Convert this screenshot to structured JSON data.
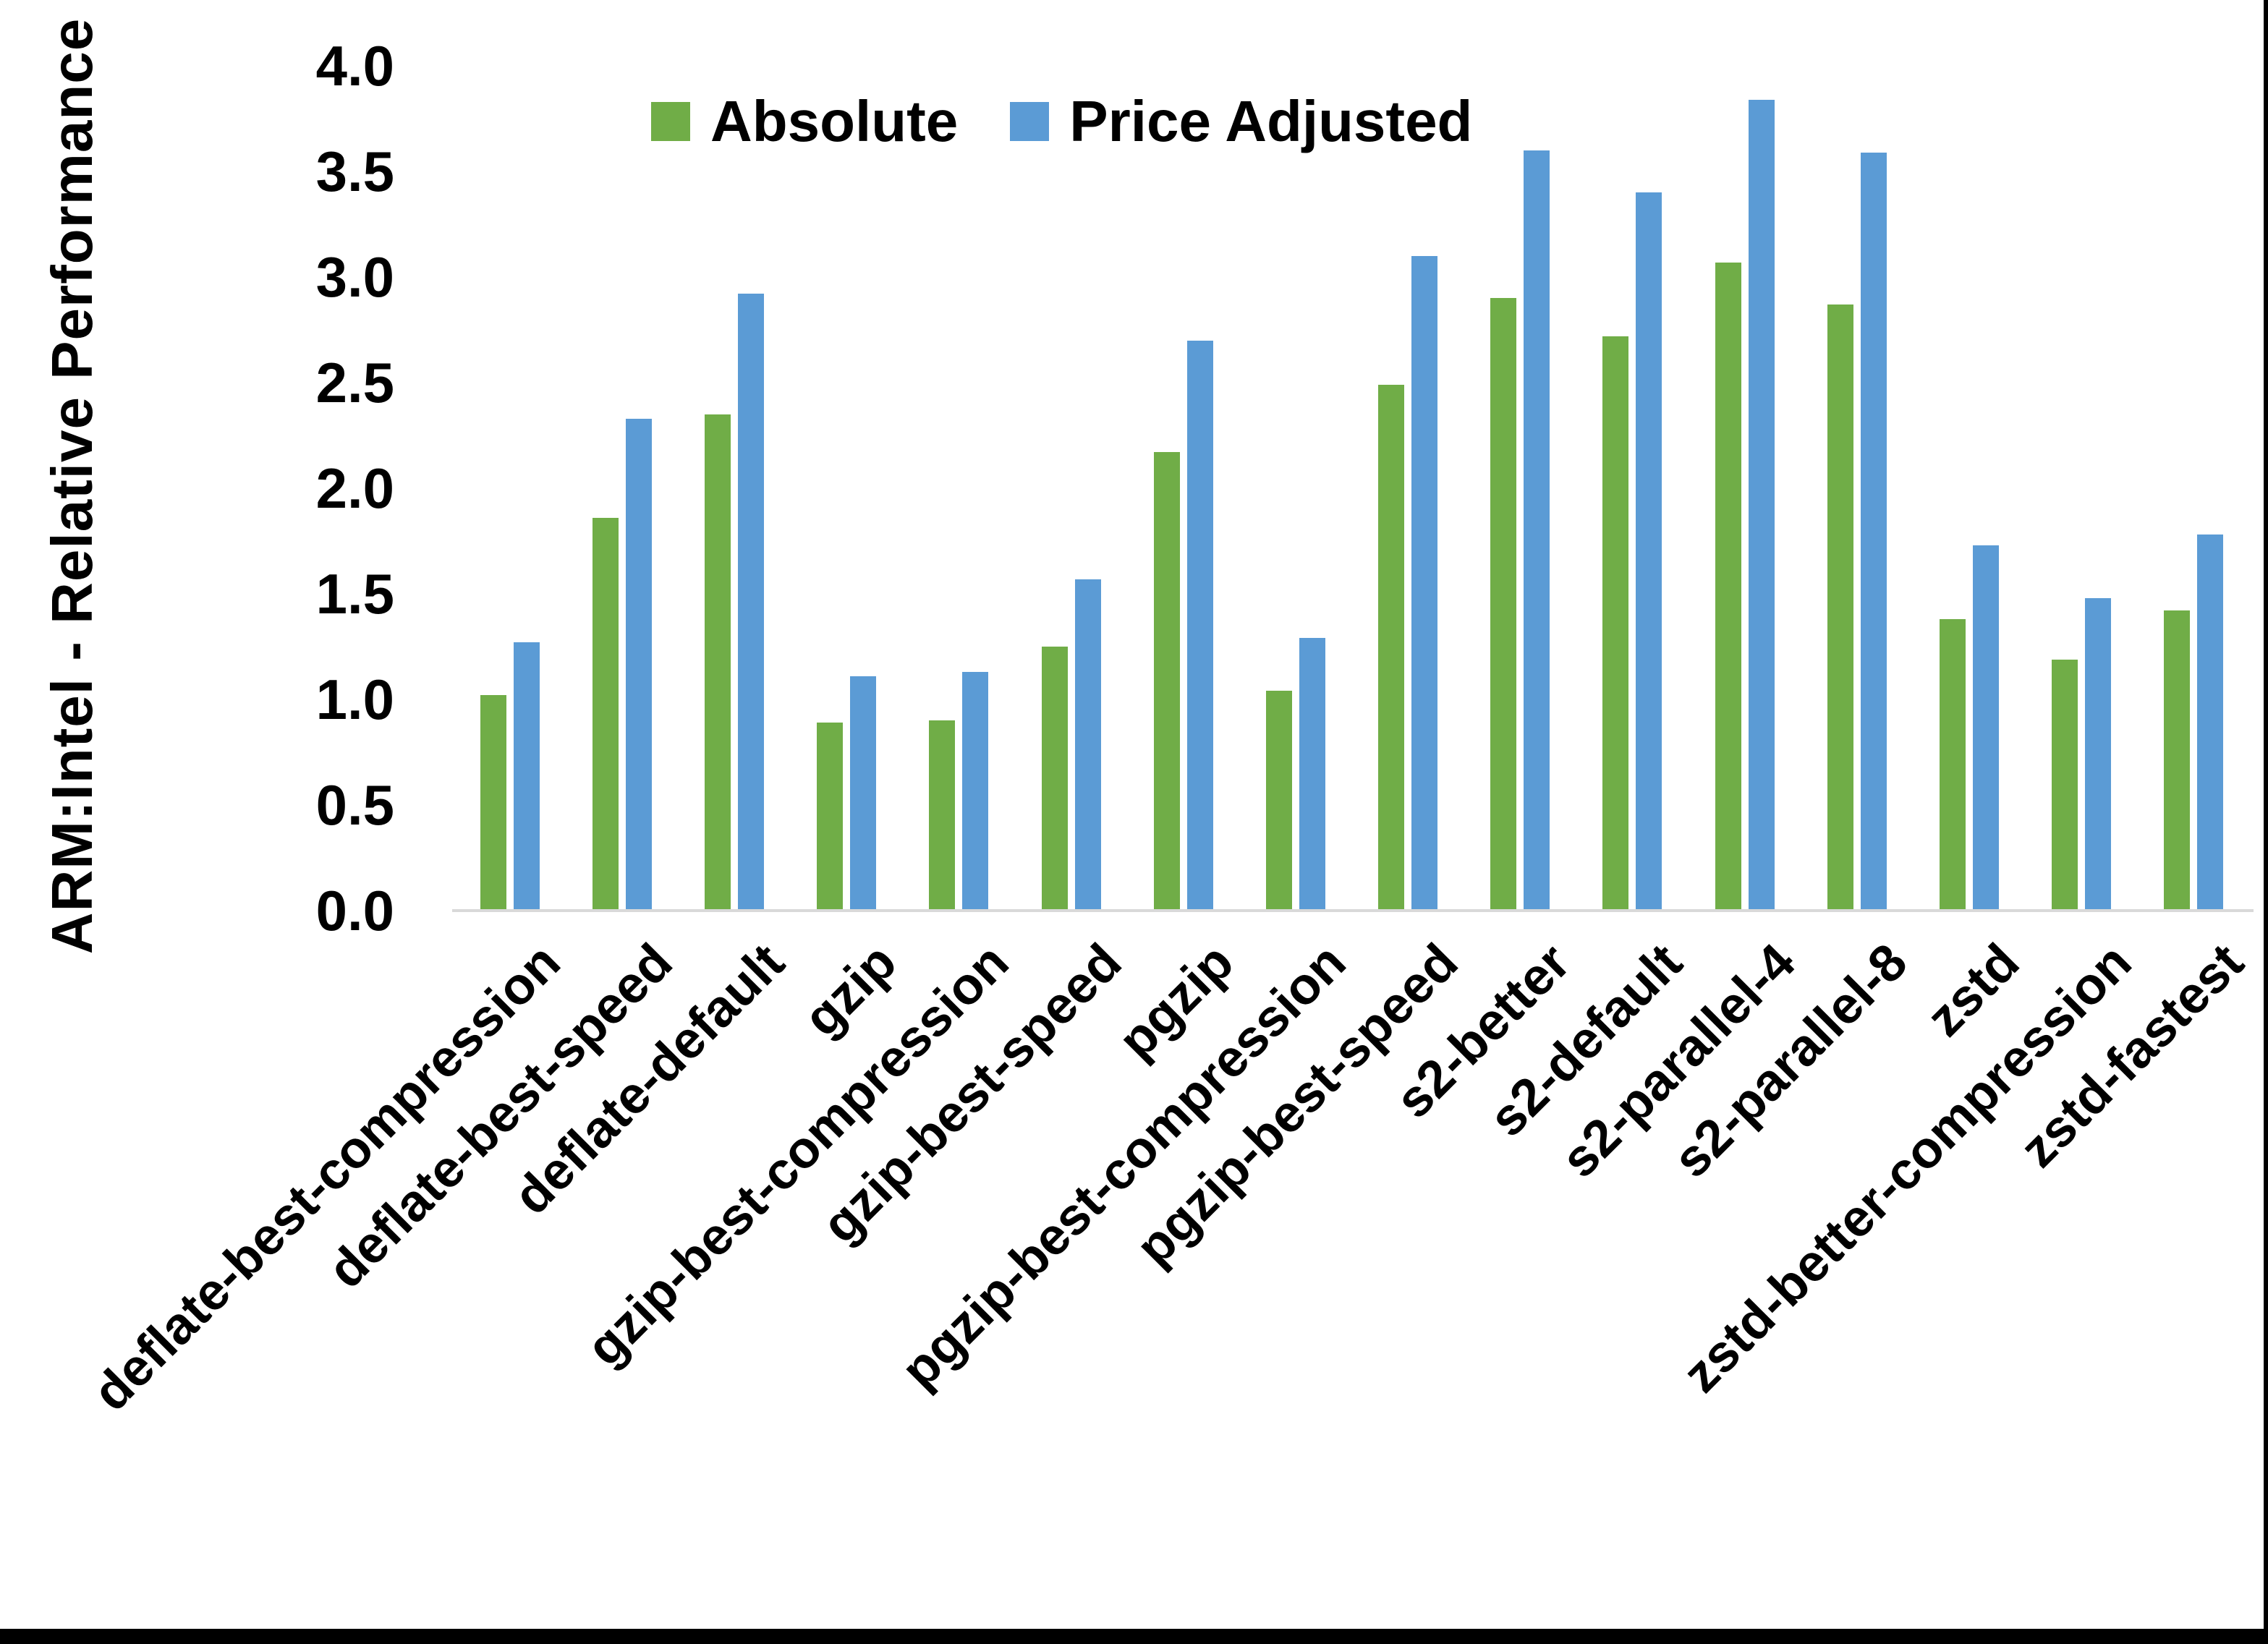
{
  "chart_data": {
    "type": "bar",
    "title": "",
    "xlabel": "",
    "ylabel": "ARM:Intel - Relative Performance",
    "ylim": [
      0.0,
      4.0
    ],
    "ytick_step": 0.5,
    "ytick_labels": [
      "0.0",
      "0.5",
      "1.0",
      "1.5",
      "2.0",
      "2.5",
      "3.0",
      "3.5",
      "4.0"
    ],
    "grid": false,
    "legend_position": "top-center",
    "axis_line_color": "#D9D9D9",
    "background_color": "#FFFFFF",
    "border_color": "#000000",
    "categories": [
      "deflate-best-compression",
      "deflate-best-speed",
      "deflate-default",
      "gzip",
      "gzip-best-compression",
      "gzip-best-speed",
      "pgzip",
      "pgzip-best-compression",
      "pgzip-best-speed",
      "s2-better",
      "s2-default",
      "s2-parallel-4",
      "s2-parallel-8",
      "zstd",
      "zstd-better-compression",
      "zstd-fastest"
    ],
    "series": [
      {
        "name": "Absolute",
        "color": "#70AD47",
        "values": [
          1.02,
          1.86,
          2.35,
          0.89,
          0.9,
          1.25,
          2.17,
          1.04,
          2.49,
          2.9,
          2.72,
          3.07,
          2.87,
          1.38,
          1.19,
          1.42
        ]
      },
      {
        "name": "Price Adjusted",
        "color": "#5B9BD5",
        "values": [
          1.27,
          2.33,
          2.92,
          1.11,
          1.13,
          1.57,
          2.7,
          1.29,
          3.1,
          3.6,
          3.4,
          3.84,
          3.59,
          1.73,
          1.48,
          1.78
        ]
      }
    ]
  }
}
